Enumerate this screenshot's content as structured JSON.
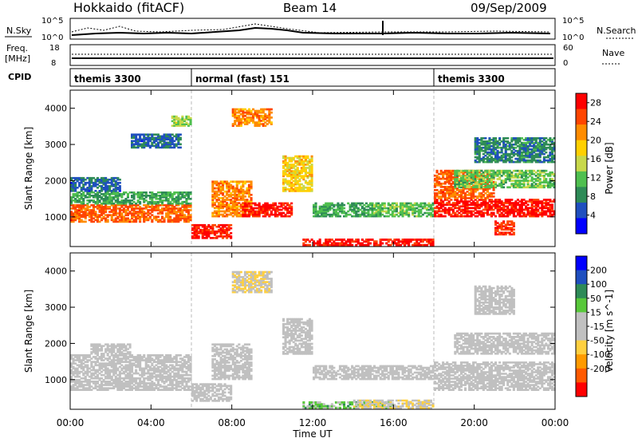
{
  "header": {
    "title": "Hokkaido (fitACF)",
    "beam": "Beam 14",
    "date": "09/Sep/2009"
  },
  "noise_panel": {
    "left_label": "N.Sky",
    "left_ticks": [
      "10^5",
      "10^0"
    ],
    "right_label": "N.Search",
    "right_ticks": [
      "10^5",
      "10^0"
    ]
  },
  "freq_panel": {
    "left_label_1": "Freq.",
    "left_label_2": "[MHz]",
    "left_ticks": [
      "18",
      "8"
    ],
    "right_label": "Nave",
    "right_ticks": [
      "60",
      "0"
    ]
  },
  "cpid": {
    "label": "CPID",
    "segments": [
      {
        "name": "themis 3300",
        "start_hour": 0
      },
      {
        "name": "normal (fast) 151",
        "start_hour": 6
      },
      {
        "name": "themis 3300",
        "start_hour": 18
      }
    ]
  },
  "colors": {
    "power_scale": [
      "#0000ff",
      "#1f4fbf",
      "#2e8b57",
      "#4fbf4f",
      "#c8d84a",
      "#ffd000",
      "#ff8c00",
      "#ff4500",
      "#ff0000"
    ],
    "velocity_scale": [
      "#ff0000",
      "#ff5a00",
      "#ff9a00",
      "#ffd040",
      "#c0c0c0",
      "#c0c0c0",
      "#58c83a",
      "#2e8b57",
      "#1f4fbf",
      "#0000ff"
    ],
    "ground_scatter": "#c0c0c0"
  },
  "chart_data": [
    {
      "type": "heatmap",
      "panel": "power",
      "xlabel": "Time UT",
      "ylabel": "Slant Range [km]",
      "x_ticks": [
        "00:00",
        "04:00",
        "08:00",
        "12:00",
        "16:00",
        "20:00",
        "00:00"
      ],
      "xlim": [
        0,
        24
      ],
      "y_ticks": [
        "1000",
        "2000",
        "3000",
        "4000"
      ],
      "ylim": [
        180,
        4500
      ],
      "colorbar_label": "Power [dB]",
      "colorbar_ticks": [
        "4",
        "8",
        "12",
        "16",
        "20",
        "24",
        "28"
      ],
      "clim": [
        0,
        30
      ],
      "scatter_regions": [
        {
          "t": [
            0.0,
            6.0
          ],
          "r": [
            850,
            1350
          ],
          "value": 24
        },
        {
          "t": [
            0.0,
            6.0
          ],
          "r": [
            1350,
            1700
          ],
          "value": 10
        },
        {
          "t": [
            0.0,
            2.5
          ],
          "r": [
            1700,
            2100
          ],
          "value": 6
        },
        {
          "t": [
            3.0,
            5.5
          ],
          "r": [
            2900,
            3300
          ],
          "value": 6
        },
        {
          "t": [
            5.0,
            6.0
          ],
          "r": [
            3500,
            3800
          ],
          "value": 14
        },
        {
          "t": [
            6.0,
            8.0
          ],
          "r": [
            400,
            800
          ],
          "value": 28
        },
        {
          "t": [
            7.0,
            9.0
          ],
          "r": [
            1000,
            2000
          ],
          "value": 22
        },
        {
          "t": [
            8.0,
            10.0
          ],
          "r": [
            3500,
            4000
          ],
          "value": 22
        },
        {
          "t": [
            8.5,
            11.0
          ],
          "r": [
            1000,
            1400
          ],
          "value": 28
        },
        {
          "t": [
            10.5,
            12.0
          ],
          "r": [
            1700,
            2700
          ],
          "value": 18
        },
        {
          "t": [
            11.5,
            18.0
          ],
          "r": [
            200,
            400
          ],
          "value": 28
        },
        {
          "t": [
            12.0,
            15.0
          ],
          "r": [
            1000,
            1400
          ],
          "value": 10
        },
        {
          "t": [
            15.0,
            18.0
          ],
          "r": [
            1000,
            1400
          ],
          "value": 12
        },
        {
          "t": [
            18.0,
            24.0
          ],
          "r": [
            1000,
            1500
          ],
          "value": 28
        },
        {
          "t": [
            18.0,
            21.0
          ],
          "r": [
            1500,
            2300
          ],
          "value": 24
        },
        {
          "t": [
            19.0,
            24.0
          ],
          "r": [
            1800,
            2300
          ],
          "value": 12
        },
        {
          "t": [
            20.0,
            24.0
          ],
          "r": [
            2500,
            3200
          ],
          "value": 8
        },
        {
          "t": [
            21.0,
            22.0
          ],
          "r": [
            500,
            900
          ],
          "value": 26
        }
      ]
    },
    {
      "type": "heatmap",
      "panel": "velocity",
      "xlabel": "Time UT",
      "ylabel": "Slant Range [km]",
      "x_ticks": [
        "00:00",
        "04:00",
        "08:00",
        "12:00",
        "16:00",
        "20:00",
        "00:00"
      ],
      "xlim": [
        0,
        24
      ],
      "y_ticks": [
        "1000",
        "2000",
        "3000",
        "4000"
      ],
      "ylim": [
        180,
        4500
      ],
      "colorbar_label": "Velocity [m s^-1]",
      "colorbar_ticks": [
        "200",
        "100",
        "50",
        "15",
        "-15",
        "-50",
        "-100",
        "-200"
      ],
      "clim": [
        -250,
        250
      ],
      "scatter_regions": [
        {
          "t": [
            0.0,
            6.0
          ],
          "r": [
            700,
            1700
          ],
          "value": 0
        },
        {
          "t": [
            1.0,
            3.0
          ],
          "r": [
            1700,
            2000
          ],
          "value": 0
        },
        {
          "t": [
            6.0,
            8.0
          ],
          "r": [
            400,
            900
          ],
          "value": 0
        },
        {
          "t": [
            7.0,
            9.0
          ],
          "r": [
            1000,
            2000
          ],
          "value": 0
        },
        {
          "t": [
            8.0,
            10.0
          ],
          "r": [
            3400,
            4000
          ],
          "value": -40
        },
        {
          "t": [
            10.5,
            12.0
          ],
          "r": [
            1700,
            2700
          ],
          "value": 0
        },
        {
          "t": [
            11.5,
            16.0
          ],
          "r": [
            200,
            400
          ],
          "value": 60
        },
        {
          "t": [
            14.0,
            18.0
          ],
          "r": [
            200,
            450
          ],
          "value": -40
        },
        {
          "t": [
            12.0,
            18.0
          ],
          "r": [
            1000,
            1400
          ],
          "value": 0
        },
        {
          "t": [
            18.0,
            24.0
          ],
          "r": [
            700,
            1500
          ],
          "value": 0
        },
        {
          "t": [
            19.0,
            24.0
          ],
          "r": [
            1700,
            2300
          ],
          "value": 0
        },
        {
          "t": [
            20.0,
            22.0
          ],
          "r": [
            2800,
            3600
          ],
          "value": 0
        }
      ]
    }
  ]
}
